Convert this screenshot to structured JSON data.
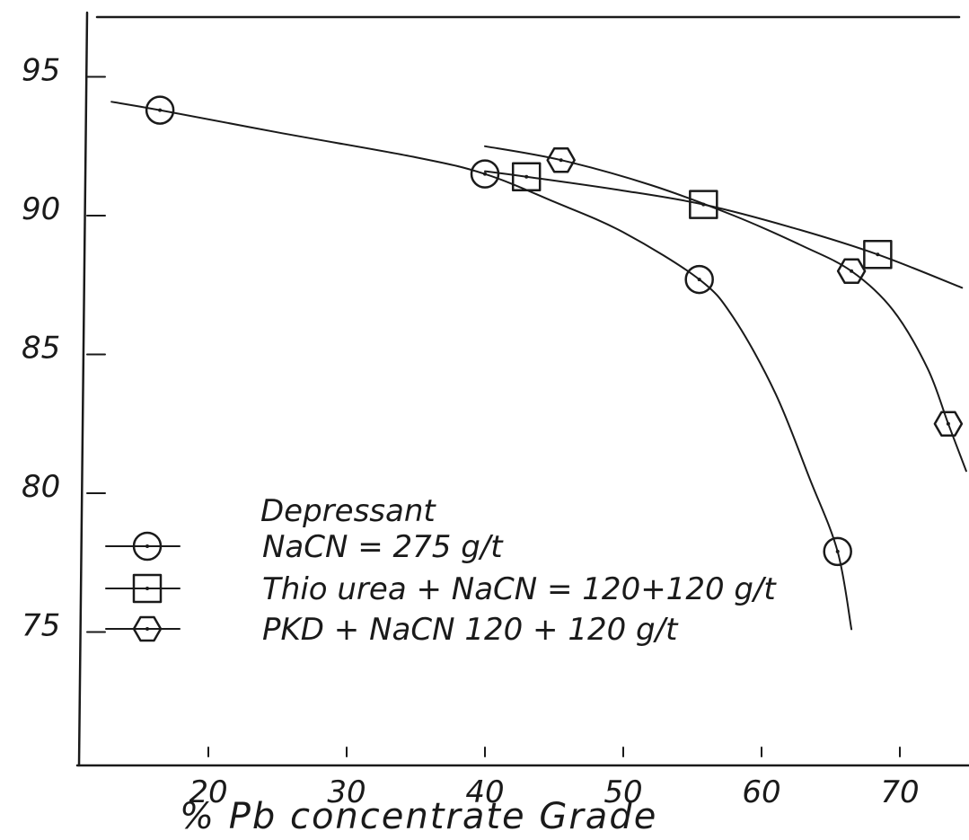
{
  "chart_data": {
    "type": "line",
    "title": "",
    "xlabel": "% Pb concentrate Grade",
    "ylabel": "",
    "x_ticks": [
      20,
      30,
      40,
      50,
      60,
      70
    ],
    "y_ticks": [
      95,
      90,
      85,
      80,
      75
    ],
    "xlim": [
      10,
      75
    ],
    "ylim": [
      70,
      98
    ],
    "grid": false,
    "legend": {
      "title": "Depressant",
      "placement": "bottom-left"
    },
    "series": [
      {
        "name": "NaCN = 275 g/t",
        "marker": "circle",
        "points": [
          [
            16.5,
            93.8
          ],
          [
            40.0,
            91.5
          ],
          [
            55.5,
            87.7
          ],
          [
            65.5,
            77.9
          ]
        ],
        "curve": [
          [
            13,
            94.1
          ],
          [
            16.5,
            93.8
          ],
          [
            25,
            93.0
          ],
          [
            35,
            92.1
          ],
          [
            40,
            91.5
          ],
          [
            45,
            90.5
          ],
          [
            50,
            89.4
          ],
          [
            55.5,
            87.7
          ],
          [
            58,
            86.3
          ],
          [
            61,
            83.6
          ],
          [
            63.5,
            80.5
          ],
          [
            65.5,
            77.9
          ],
          [
            66.5,
            75.1
          ]
        ]
      },
      {
        "name": "Thio urea + NaCN = 120+120 g/t",
        "marker": "square",
        "points": [
          [
            43.0,
            91.4
          ],
          [
            55.8,
            90.4
          ],
          [
            68.4,
            88.6
          ]
        ],
        "curve": [
          [
            40,
            91.6
          ],
          [
            43,
            91.4
          ],
          [
            50,
            90.9
          ],
          [
            55.8,
            90.4
          ],
          [
            62,
            89.6
          ],
          [
            68.4,
            88.6
          ],
          [
            74.5,
            87.4
          ]
        ]
      },
      {
        "name": "PKD + NaCN 120 + 120 g/t",
        "marker": "hexagon",
        "points": [
          [
            45.5,
            92.0
          ],
          [
            66.5,
            88.0
          ],
          [
            73.5,
            82.5
          ]
        ],
        "curve": [
          [
            40,
            92.5
          ],
          [
            45.5,
            92.0
          ],
          [
            52,
            91.1
          ],
          [
            58,
            90.0
          ],
          [
            63,
            88.9
          ],
          [
            66.5,
            88.0
          ],
          [
            69.5,
            86.6
          ],
          [
            72,
            84.5
          ],
          [
            73.5,
            82.5
          ],
          [
            74.8,
            80.8
          ]
        ]
      }
    ]
  }
}
